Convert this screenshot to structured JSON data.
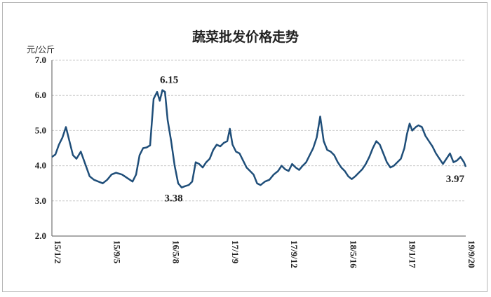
{
  "chart_data": {
    "type": "line",
    "title": "蔬菜批发价格走势",
    "ylabel": "元/公斤",
    "xlabel": "",
    "ylim": [
      2.0,
      7.0
    ],
    "yticks": [
      "7.0",
      "6.0",
      "5.0",
      "4.0",
      "3.0",
      "2.0"
    ],
    "xtick_labels": [
      "15/1/2",
      "15/9/5",
      "16/5/8",
      "17/1/9",
      "17/9/12",
      "18/5/16",
      "19/1/17",
      "19/9/20"
    ],
    "grid": true,
    "line_color": "#1f4e79",
    "annotations": [
      {
        "text": "6.15",
        "x": 2016.28,
        "y": 6.15
      },
      {
        "text": "3.38",
        "x": 2016.42,
        "y": 3.38
      },
      {
        "text": "3.97",
        "x": 2019.72,
        "y": 3.97
      }
    ],
    "series": [
      {
        "values": [
          [
            2015.0,
            4.25
          ],
          [
            2015.04,
            4.32
          ],
          [
            2015.08,
            4.6
          ],
          [
            2015.12,
            4.8
          ],
          [
            2015.16,
            5.1
          ],
          [
            2015.2,
            4.7
          ],
          [
            2015.24,
            4.3
          ],
          [
            2015.28,
            4.2
          ],
          [
            2015.33,
            4.4
          ],
          [
            2015.38,
            4.05
          ],
          [
            2015.43,
            3.7
          ],
          [
            2015.48,
            3.6
          ],
          [
            2015.53,
            3.55
          ],
          [
            2015.58,
            3.5
          ],
          [
            2015.63,
            3.6
          ],
          [
            2015.68,
            3.75
          ],
          [
            2015.73,
            3.8
          ],
          [
            2015.8,
            3.75
          ],
          [
            2015.86,
            3.65
          ],
          [
            2015.92,
            3.55
          ],
          [
            2015.96,
            3.75
          ],
          [
            2016.0,
            4.3
          ],
          [
            2016.04,
            4.5
          ],
          [
            2016.08,
            4.52
          ],
          [
            2016.12,
            4.58
          ],
          [
            2016.16,
            5.9
          ],
          [
            2016.2,
            6.1
          ],
          [
            2016.23,
            5.85
          ],
          [
            2016.26,
            6.15
          ],
          [
            2016.29,
            6.1
          ],
          [
            2016.32,
            5.3
          ],
          [
            2016.36,
            4.7
          ],
          [
            2016.4,
            4.0
          ],
          [
            2016.44,
            3.5
          ],
          [
            2016.48,
            3.38
          ],
          [
            2016.52,
            3.42
          ],
          [
            2016.56,
            3.45
          ],
          [
            2016.6,
            3.55
          ],
          [
            2016.64,
            4.1
          ],
          [
            2016.68,
            4.05
          ],
          [
            2016.72,
            3.95
          ],
          [
            2016.76,
            4.1
          ],
          [
            2016.8,
            4.2
          ],
          [
            2016.84,
            4.45
          ],
          [
            2016.88,
            4.6
          ],
          [
            2016.92,
            4.55
          ],
          [
            2016.96,
            4.65
          ],
          [
            2017.0,
            4.7
          ],
          [
            2017.03,
            5.05
          ],
          [
            2017.06,
            4.6
          ],
          [
            2017.1,
            4.4
          ],
          [
            2017.14,
            4.35
          ],
          [
            2017.18,
            4.15
          ],
          [
            2017.22,
            3.95
          ],
          [
            2017.26,
            3.85
          ],
          [
            2017.3,
            3.75
          ],
          [
            2017.34,
            3.5
          ],
          [
            2017.38,
            3.45
          ],
          [
            2017.43,
            3.55
          ],
          [
            2017.48,
            3.6
          ],
          [
            2017.53,
            3.75
          ],
          [
            2017.58,
            3.85
          ],
          [
            2017.62,
            4.0
          ],
          [
            2017.66,
            3.9
          ],
          [
            2017.7,
            3.85
          ],
          [
            2017.74,
            4.05
          ],
          [
            2017.78,
            3.95
          ],
          [
            2017.82,
            3.88
          ],
          [
            2017.86,
            4.0
          ],
          [
            2017.9,
            4.1
          ],
          [
            2017.94,
            4.3
          ],
          [
            2017.98,
            4.5
          ],
          [
            2018.02,
            4.8
          ],
          [
            2018.06,
            5.4
          ],
          [
            2018.1,
            4.7
          ],
          [
            2018.14,
            4.45
          ],
          [
            2018.18,
            4.4
          ],
          [
            2018.22,
            4.3
          ],
          [
            2018.26,
            4.1
          ],
          [
            2018.3,
            3.95
          ],
          [
            2018.34,
            3.85
          ],
          [
            2018.38,
            3.7
          ],
          [
            2018.42,
            3.62
          ],
          [
            2018.46,
            3.7
          ],
          [
            2018.5,
            3.8
          ],
          [
            2018.54,
            3.9
          ],
          [
            2018.58,
            4.05
          ],
          [
            2018.62,
            4.25
          ],
          [
            2018.66,
            4.5
          ],
          [
            2018.7,
            4.7
          ],
          [
            2018.74,
            4.6
          ],
          [
            2018.78,
            4.35
          ],
          [
            2018.82,
            4.1
          ],
          [
            2018.86,
            3.95
          ],
          [
            2018.9,
            4.0
          ],
          [
            2018.94,
            4.1
          ],
          [
            2018.98,
            4.2
          ],
          [
            2019.02,
            4.5
          ],
          [
            2019.05,
            4.9
          ],
          [
            2019.08,
            5.2
          ],
          [
            2019.11,
            5.0
          ],
          [
            2019.15,
            5.1
          ],
          [
            2019.18,
            5.15
          ],
          [
            2019.22,
            5.1
          ],
          [
            2019.26,
            4.85
          ],
          [
            2019.3,
            4.7
          ],
          [
            2019.34,
            4.55
          ],
          [
            2019.38,
            4.35
          ],
          [
            2019.42,
            4.2
          ],
          [
            2019.46,
            4.05
          ],
          [
            2019.5,
            4.2
          ],
          [
            2019.54,
            4.35
          ],
          [
            2019.58,
            4.1
          ],
          [
            2019.62,
            4.15
          ],
          [
            2019.66,
            4.25
          ],
          [
            2019.7,
            4.1
          ],
          [
            2019.72,
            3.97
          ]
        ]
      }
    ]
  }
}
